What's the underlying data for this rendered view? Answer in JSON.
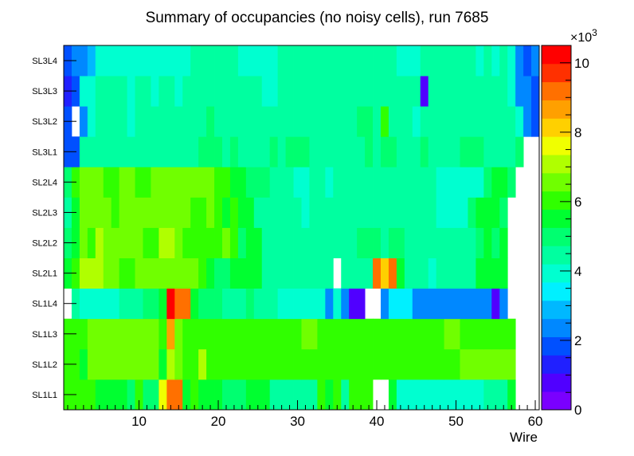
{
  "chart_data": {
    "type": "heatmap",
    "title": "Summary of occupancies (no noisy cells), run 7685",
    "xlabel": "Wire",
    "ylabel": "",
    "xlim": [
      0.5,
      60.5
    ],
    "x_ticks": [
      "10",
      "20",
      "30",
      "40",
      "50",
      "60"
    ],
    "rows": [
      "SL1L1",
      "SL1L2",
      "SL1L3",
      "SL1L4",
      "SL2L1",
      "SL2L2",
      "SL2L3",
      "SL2L4",
      "SL3L1",
      "SL3L2",
      "SL3L3",
      "SL3L4"
    ],
    "z_range": [
      0,
      10500
    ],
    "colorbar_multiplier": "×10",
    "colorbar_exponent": "3",
    "colorbar_ticks": [
      "0",
      "2",
      "4",
      "6",
      "8",
      "10"
    ],
    "values_in_thousands": {
      "SL1L1": [
        6.0,
        6.0,
        6.0,
        6.0,
        5.5,
        5.5,
        5.5,
        5.5,
        5.0,
        6.0,
        5.0,
        5.0,
        7.8,
        9.0,
        9.0,
        5.5,
        6.0,
        5.5,
        5.5,
        5.5,
        5.0,
        5.0,
        5.0,
        5.5,
        5.5,
        5.5,
        4.5,
        4.5,
        4.5,
        4.5,
        4.5,
        4.5,
        6.0,
        5.5,
        6.0,
        4.5,
        6.0,
        6.0,
        6.0,
        null,
        null,
        5.5,
        3.8,
        3.8,
        3.8,
        3.8,
        3.8,
        3.8,
        3.8,
        3.8,
        3.8,
        3.8,
        3.8,
        4.5,
        4.5,
        4.5,
        5.5,
        null,
        null,
        null
      ],
      "SL1L2": [
        6.0,
        6.0,
        5.5,
        6.5,
        6.5,
        6.5,
        6.5,
        6.5,
        6.5,
        6.5,
        6.5,
        6.5,
        5.5,
        7.0,
        6.5,
        6.0,
        6.0,
        7.0,
        6.0,
        6.0,
        6.0,
        6.0,
        6.0,
        6.0,
        6.0,
        6.0,
        6.0,
        6.0,
        6.0,
        6.0,
        6.0,
        6.0,
        6.0,
        6.0,
        6.0,
        6.0,
        6.0,
        6.0,
        6.0,
        6.0,
        6.0,
        6.0,
        6.0,
        6.0,
        6.0,
        6.0,
        6.0,
        6.0,
        6.0,
        6.0,
        6.5,
        6.5,
        6.5,
        6.5,
        6.5,
        6.5,
        6.5,
        null,
        null,
        null
      ],
      "SL1L3": [
        6.0,
        6.0,
        6.0,
        6.5,
        6.5,
        6.5,
        6.5,
        6.5,
        6.5,
        6.5,
        6.5,
        6.5,
        6.0,
        8.5,
        6.5,
        6.0,
        6.0,
        6.0,
        6.0,
        6.0,
        6.0,
        6.0,
        6.0,
        6.0,
        6.0,
        6.0,
        6.0,
        6.0,
        6.0,
        6.0,
        6.5,
        6.5,
        6.0,
        6.0,
        6.0,
        6.0,
        6.0,
        6.0,
        6.0,
        6.0,
        6.0,
        6.0,
        6.0,
        6.0,
        6.0,
        6.0,
        6.0,
        6.0,
        6.5,
        6.5,
        6.0,
        6.0,
        6.0,
        6.0,
        6.0,
        6.0,
        6.0,
        null,
        null,
        null
      ],
      "SL1L4": [
        null,
        4.5,
        3.8,
        3.8,
        3.8,
        3.8,
        3.8,
        4.5,
        4.5,
        4.5,
        5.0,
        5.0,
        5.5,
        10.5,
        9.0,
        9.0,
        5.5,
        5.0,
        5.0,
        5.0,
        4.5,
        4.5,
        4.5,
        5.0,
        4.5,
        4.5,
        4.5,
        3.8,
        3.8,
        3.8,
        3.8,
        3.8,
        3.8,
        2.5,
        3.8,
        2.5,
        1.0,
        1.0,
        null,
        null,
        2.5,
        3.2,
        3.2,
        3.2,
        2.5,
        2.5,
        2.5,
        2.5,
        2.5,
        2.5,
        2.5,
        2.5,
        2.5,
        2.5,
        1.0,
        2.5,
        null,
        null,
        null,
        null
      ],
      "SL2L1": [
        5.5,
        6.0,
        7.0,
        7.0,
        7.0,
        6.5,
        6.5,
        6.0,
        6.0,
        6.5,
        6.5,
        6.5,
        6.5,
        6.5,
        6.5,
        6.5,
        6.5,
        6.0,
        5.5,
        5.0,
        5.0,
        5.5,
        5.5,
        5.5,
        5.5,
        4.5,
        4.5,
        4.5,
        4.5,
        4.5,
        4.5,
        4.5,
        4.5,
        4.5,
        null,
        4.5,
        4.5,
        4.5,
        4.5,
        9.0,
        8.0,
        9.0,
        5.5,
        4.5,
        4.5,
        4.5,
        3.8,
        4.5,
        4.5,
        4.5,
        4.5,
        4.5,
        5.5,
        5.5,
        5.5,
        5.5,
        null,
        null,
        null,
        null
      ],
      "SL2L2": [
        5.0,
        5.5,
        6.5,
        6.0,
        7.0,
        6.5,
        6.5,
        6.5,
        6.5,
        6.5,
        6.0,
        6.0,
        7.0,
        7.0,
        6.5,
        6.0,
        6.0,
        6.0,
        6.0,
        6.0,
        6.5,
        6.0,
        5.0,
        5.5,
        5.5,
        4.5,
        4.5,
        4.5,
        4.5,
        4.5,
        4.5,
        4.5,
        4.5,
        4.5,
        4.5,
        4.5,
        4.5,
        5.0,
        5.0,
        5.0,
        4.5,
        5.0,
        5.0,
        4.5,
        4.5,
        4.5,
        4.5,
        4.5,
        4.5,
        4.5,
        4.5,
        4.5,
        5.0,
        5.5,
        5.0,
        5.5,
        null,
        null,
        null,
        null
      ],
      "SL2L3": [
        4.5,
        5.5,
        6.5,
        6.5,
        6.5,
        6.5,
        6.0,
        6.5,
        6.5,
        6.5,
        6.5,
        6.5,
        6.5,
        6.5,
        6.5,
        6.5,
        6.0,
        6.0,
        6.5,
        6.0,
        5.5,
        6.0,
        5.5,
        5.5,
        4.5,
        4.5,
        4.5,
        4.5,
        4.5,
        4.5,
        3.8,
        4.5,
        4.5,
        4.5,
        4.5,
        4.5,
        4.5,
        4.5,
        4.5,
        4.5,
        4.5,
        4.5,
        4.5,
        4.5,
        4.5,
        4.5,
        4.5,
        3.8,
        3.8,
        3.8,
        3.8,
        5.0,
        5.5,
        5.5,
        5.5,
        5.0,
        null,
        null,
        null,
        null
      ],
      "SL2L4": [
        5.0,
        6.0,
        6.5,
        6.5,
        6.5,
        6.0,
        6.0,
        6.5,
        6.5,
        6.0,
        6.0,
        6.5,
        6.5,
        6.5,
        6.5,
        6.5,
        6.5,
        6.5,
        6.5,
        6.0,
        6.0,
        5.5,
        5.5,
        5.0,
        5.0,
        5.0,
        4.5,
        4.5,
        4.5,
        3.8,
        3.8,
        4.5,
        4.5,
        3.8,
        4.5,
        4.5,
        4.5,
        4.5,
        4.5,
        4.5,
        4.5,
        4.5,
        4.5,
        4.5,
        4.5,
        4.5,
        4.5,
        3.8,
        3.8,
        3.8,
        3.8,
        3.8,
        3.8,
        5.0,
        5.5,
        5.5,
        5.0,
        null,
        null,
        null
      ],
      "SL3L1": [
        1.8,
        1.8,
        4.5,
        4.5,
        4.5,
        4.5,
        4.5,
        4.5,
        4.5,
        4.5,
        4.5,
        4.5,
        4.5,
        4.5,
        4.5,
        4.5,
        4.5,
        5.0,
        5.0,
        5.0,
        4.5,
        5.0,
        4.5,
        4.5,
        4.5,
        4.5,
        5.0,
        4.5,
        5.0,
        5.0,
        5.0,
        4.5,
        4.5,
        4.5,
        4.5,
        4.5,
        4.5,
        4.5,
        5.0,
        4.5,
        5.0,
        5.0,
        4.5,
        4.5,
        4.5,
        5.0,
        4.5,
        4.5,
        4.5,
        4.5,
        5.0,
        5.0,
        5.0,
        4.5,
        4.5,
        4.5,
        4.5,
        5.0,
        null,
        null
      ],
      "SL3L2": [
        1.8,
        null,
        2.5,
        3.8,
        4.5,
        4.5,
        4.5,
        4.5,
        3.8,
        4.5,
        4.5,
        4.5,
        4.5,
        4.5,
        4.5,
        4.5,
        4.5,
        4.5,
        5.0,
        4.5,
        4.5,
        4.5,
        4.5,
        4.5,
        4.5,
        4.5,
        4.5,
        4.5,
        4.5,
        4.5,
        4.5,
        4.5,
        4.5,
        4.5,
        4.5,
        4.5,
        4.5,
        5.0,
        5.0,
        4.5,
        6.0,
        4.5,
        4.5,
        4.5,
        3.8,
        4.5,
        4.5,
        4.5,
        4.5,
        4.5,
        4.5,
        4.5,
        4.5,
        4.5,
        4.5,
        4.5,
        4.5,
        3.8,
        2.5,
        2.0
      ],
      "SL3L3": [
        1.5,
        1.8,
        3.8,
        3.8,
        4.5,
        4.5,
        4.5,
        4.5,
        3.8,
        4.5,
        4.5,
        3.8,
        4.5,
        4.5,
        3.8,
        4.5,
        4.5,
        4.5,
        4.5,
        4.5,
        4.5,
        4.5,
        4.5,
        4.5,
        4.5,
        3.8,
        3.8,
        4.5,
        4.5,
        4.5,
        4.5,
        4.5,
        4.5,
        4.5,
        4.5,
        4.5,
        4.5,
        4.5,
        4.5,
        4.5,
        4.5,
        4.5,
        4.5,
        4.5,
        4.5,
        0.8,
        4.5,
        4.5,
        4.5,
        4.5,
        4.5,
        4.5,
        4.5,
        4.5,
        4.5,
        4.5,
        3.8,
        2.5,
        2.5,
        1.8
      ],
      "SL3L4": [
        1.8,
        2.5,
        2.5,
        3.0,
        3.8,
        3.8,
        3.8,
        3.8,
        3.8,
        3.8,
        3.8,
        3.8,
        3.8,
        3.8,
        3.8,
        3.8,
        4.5,
        4.5,
        4.5,
        4.5,
        4.5,
        4.5,
        3.8,
        3.8,
        3.8,
        3.8,
        3.8,
        4.5,
        4.5,
        4.5,
        4.5,
        4.5,
        4.5,
        4.5,
        4.5,
        4.5,
        4.5,
        4.5,
        4.5,
        4.5,
        4.5,
        4.5,
        3.8,
        3.8,
        3.8,
        4.5,
        4.5,
        4.5,
        4.5,
        4.5,
        4.5,
        4.5,
        3.8,
        4.5,
        3.8,
        4.5,
        3.8,
        2.5,
        2.0,
        2.5
      ]
    }
  }
}
